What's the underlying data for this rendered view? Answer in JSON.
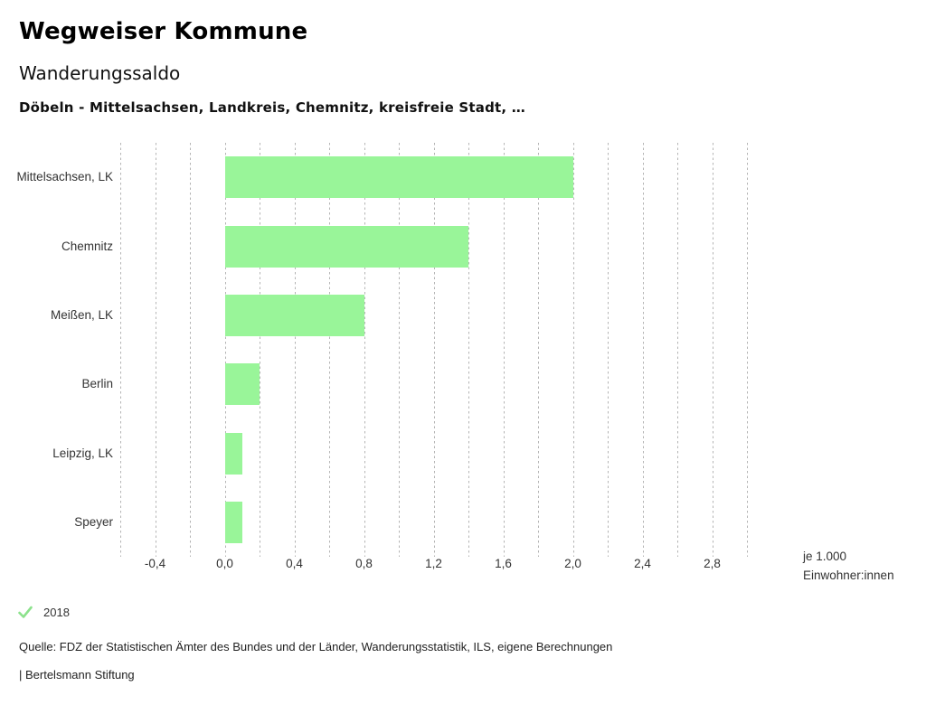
{
  "header": {
    "title": "Wegweiser Kommune",
    "subtitle": "Wanderungssaldo",
    "context": "Döbeln - Mittelsachsen, Landkreis, Chemnitz, kreisfreie Stadt, …"
  },
  "chart_data": {
    "type": "bar",
    "orientation": "horizontal",
    "title": "Wanderungssaldo",
    "categories": [
      "Mittelsachsen, LK",
      "Chemnitz",
      "Meißen, LK",
      "Berlin",
      "Leipzig, LK",
      "Speyer"
    ],
    "series": [
      {
        "name": "2018",
        "values": [
          2.0,
          1.4,
          0.8,
          0.2,
          0.1,
          0.1
        ]
      }
    ],
    "xlim": [
      -0.6,
      3.0
    ],
    "grid_step": 0.2,
    "grid_on": true,
    "ticks": [
      {
        "value": -0.4,
        "label": "-0,4"
      },
      {
        "value": 0.0,
        "label": "0,0"
      },
      {
        "value": 0.4,
        "label": "0,4"
      },
      {
        "value": 0.8,
        "label": "0,8"
      },
      {
        "value": 1.2,
        "label": "1,2"
      },
      {
        "value": 1.6,
        "label": "1,6"
      },
      {
        "value": 2.0,
        "label": "2,0"
      },
      {
        "value": 2.4,
        "label": "2,4"
      },
      {
        "value": 2.8,
        "label": "2,8"
      }
    ],
    "unit_label_line1": "je 1.000",
    "unit_label_line2": "Einwohner:innen",
    "bar_color": "#99f599",
    "gridline_color": "#b4b4b4"
  },
  "legend": {
    "year": "2018",
    "check_color": "#8ce28c"
  },
  "source": "Quelle: FDZ der Statistischen Ämter des Bundes und der Länder, Wanderungsstatistik, ILS, eigene Berechnungen",
  "footer": "| Bertelsmann Stiftung"
}
